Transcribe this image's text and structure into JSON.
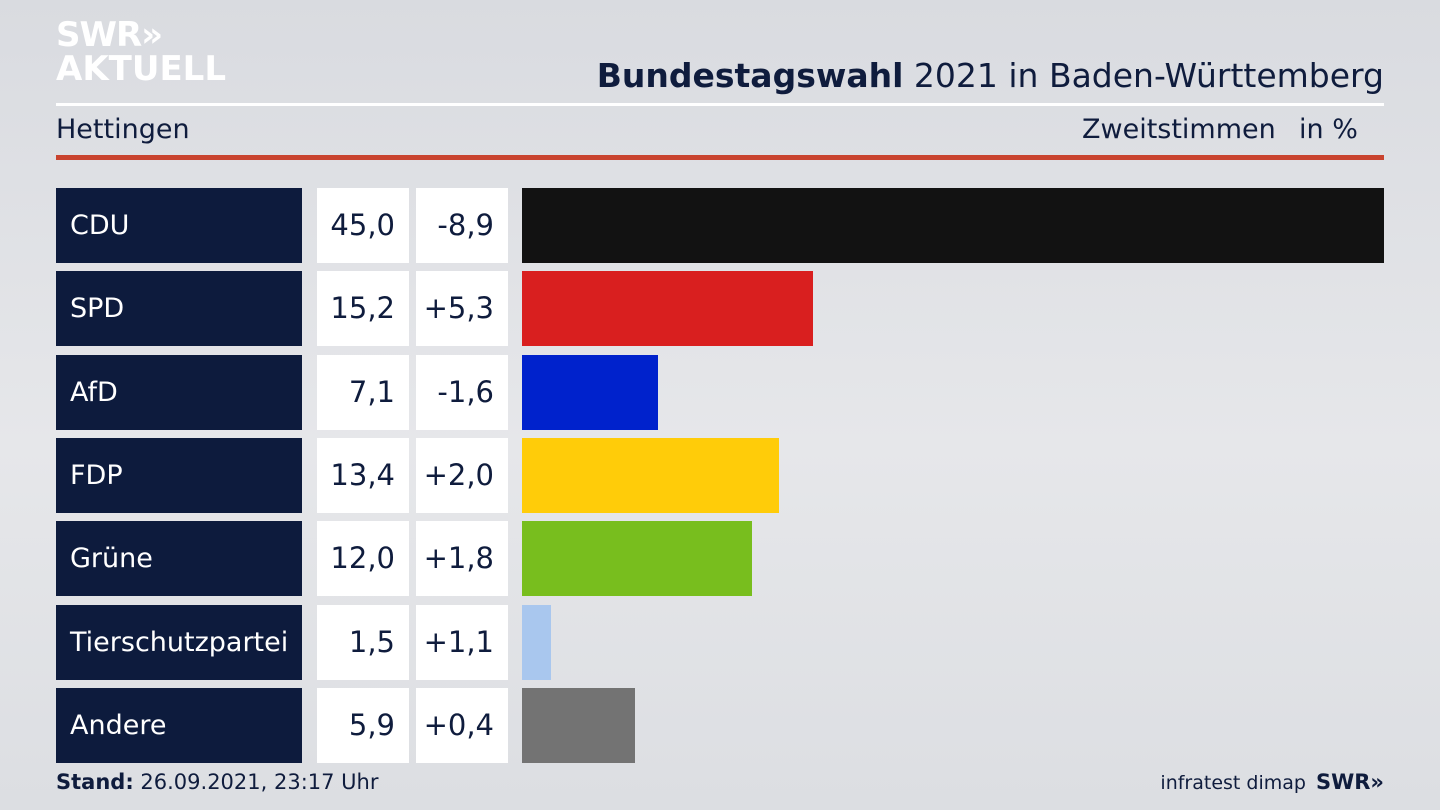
{
  "brand": {
    "line1": "SWR",
    "line2": "AKTUELL",
    "chevron": "»",
    "footer_logo": "SWR»"
  },
  "header": {
    "title_bold": "Bundestagswahl",
    "title_rest": " 2021 in Baden-Württemberg",
    "region": "Hettingen",
    "metric": "Zweitstimmen",
    "unit": "in %"
  },
  "chart_data": {
    "type": "bar",
    "orientation": "horizontal",
    "categories": [
      "CDU",
      "SPD",
      "AfD",
      "FDP",
      "Grüne",
      "Tierschutzpartei",
      "Andere"
    ],
    "values": [
      45.0,
      15.2,
      7.1,
      13.4,
      12.0,
      1.5,
      5.9
    ],
    "value_labels": [
      "45,0",
      "15,2",
      "7,1",
      "13,4",
      "12,0",
      "1,5",
      "5,9"
    ],
    "change_labels": [
      "-8,9",
      "+5,3",
      "-1,6",
      "+2,0",
      "+1,8",
      "+1,1",
      "+0,4"
    ],
    "colors": [
      "#121212",
      "#d91f1f",
      "#0022cc",
      "#ffcc09",
      "#78be1e",
      "#a9c7ee",
      "#737373"
    ],
    "xlim": [
      0,
      45.0
    ]
  },
  "footer": {
    "stand_label": "Stand:",
    "stand_value": " 26.09.2021, 23:17 Uhr",
    "source": "infratest dimap"
  }
}
